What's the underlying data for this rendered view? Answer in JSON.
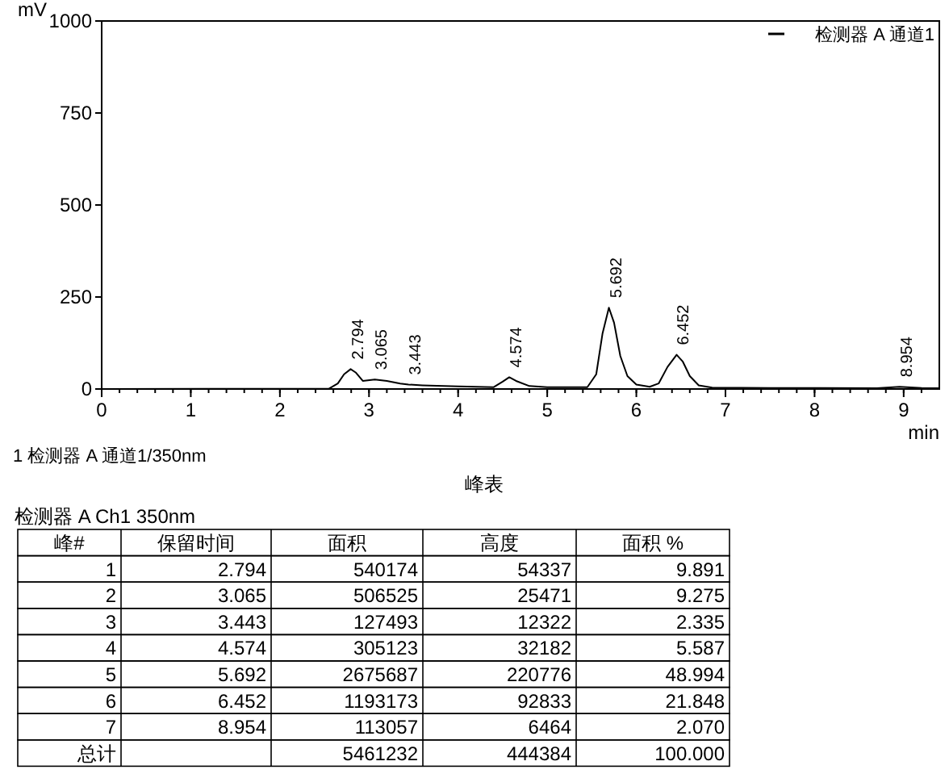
{
  "chart_data": {
    "type": "line",
    "ylabel": "mV",
    "xlabel": "min",
    "xlim": [
      0,
      9.4
    ],
    "ylim": [
      0,
      1000
    ],
    "xticks": [
      0,
      1,
      2,
      3,
      4,
      5,
      6,
      7,
      8,
      9
    ],
    "yticks": [
      0,
      250,
      500,
      750,
      1000
    ],
    "legend": "top right",
    "marker": "none",
    "line_style": "solid",
    "grid": false,
    "series": [
      {
        "name": "检测器 A 通道1",
        "color": "#000000",
        "x": [
          0,
          2.55,
          2.65,
          2.72,
          2.794,
          2.85,
          2.93,
          3.065,
          3.2,
          3.35,
          3.443,
          3.6,
          4.0,
          4.4,
          4.5,
          4.574,
          4.65,
          4.8,
          5.0,
          5.45,
          5.55,
          5.62,
          5.692,
          5.75,
          5.82,
          5.9,
          6.0,
          6.15,
          6.25,
          6.35,
          6.452,
          6.52,
          6.6,
          6.7,
          6.85,
          7.5,
          8.7,
          8.954,
          9.2,
          9.4
        ],
        "values": [
          0,
          1,
          15,
          40,
          54,
          45,
          22,
          26,
          22,
          15,
          12,
          10,
          7,
          5,
          20,
          32,
          22,
          8,
          5,
          5,
          40,
          150,
          221,
          180,
          90,
          35,
          12,
          6,
          15,
          60,
          93,
          75,
          35,
          10,
          4,
          3,
          2,
          6,
          3,
          2
        ]
      }
    ],
    "annotations": [
      "1 检测器 A 通道1/350nm",
      "峰表",
      "检测器 A Ch1 350nm",
      "峰#\t保留时间\t面积\t高度\t面积 %",
      "1\t2.794\t540174\t54337\t9.891",
      "2\t3.065\t506525\t25471\t9.275",
      "3\t3.443\t127493\t12322\t2.335",
      "4\t4.574\t305123\t32182\t5.587",
      "5\t5.692\t2675687\t220776\t48.994",
      "6\t6.452\t1193173\t92833\t21.848",
      "7\t8.954\t113057\t6464\t2.070",
      "总计\t\t5461232\t444384\t100.000",
      {
        "text": "2.794",
        "x": 2.794,
        "y": 54
      },
      {
        "text": "3.065",
        "x": 3.065,
        "y": 26
      },
      {
        "text": "3.443",
        "x": 3.443,
        "y": 12
      },
      {
        "text": "4.574",
        "x": 4.574,
        "y": 32
      },
      {
        "text": "5.692",
        "x": 5.692,
        "y": 221
      },
      {
        "text": "6.452",
        "x": 6.452,
        "y": 93
      },
      {
        "text": "8.954",
        "x": 8.954,
        "y": 6
      }
    ]
  }
}
